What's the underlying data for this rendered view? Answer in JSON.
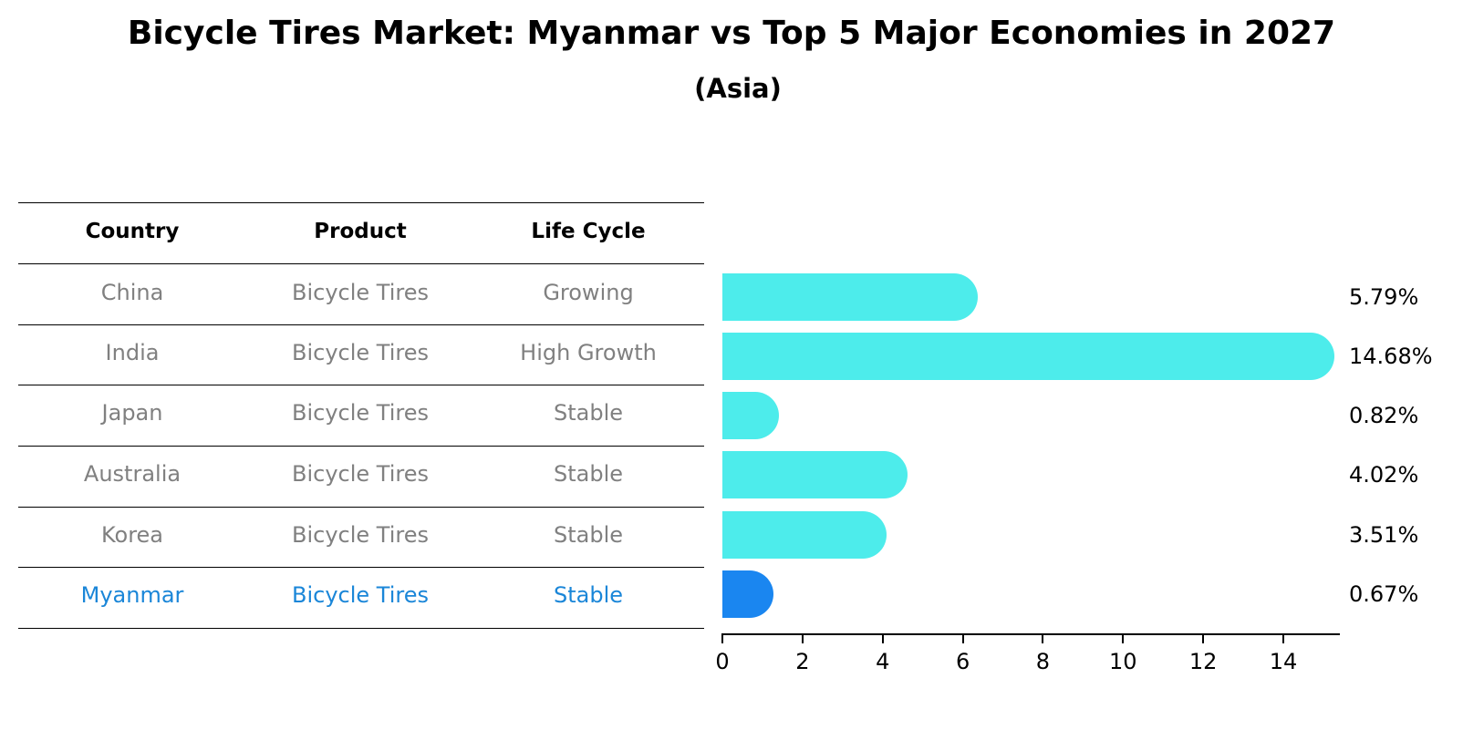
{
  "title": "Bicycle Tires Market: Myanmar vs Top 5 Major Economies in 2027",
  "subtitle": "(Asia)",
  "table": {
    "headers": [
      "Country",
      "Product",
      "Life Cycle"
    ],
    "rows": [
      {
        "country": "China",
        "product": "Bicycle Tires",
        "life_cycle": "Growing"
      },
      {
        "country": "India",
        "product": "Bicycle Tires",
        "life_cycle": "High Growth"
      },
      {
        "country": "Japan",
        "product": "Bicycle Tires",
        "life_cycle": "Stable"
      },
      {
        "country": "Australia",
        "product": "Bicycle Tires",
        "life_cycle": "Stable"
      },
      {
        "country": "Korea",
        "product": "Bicycle Tires",
        "life_cycle": "Stable"
      },
      {
        "country": "Myanmar",
        "product": "Bicycle Tires",
        "life_cycle": "Stable"
      }
    ]
  },
  "colors": {
    "bar": "#4deceb",
    "highlight_bar": "#1a86f0",
    "highlight_text": "#1a86d8",
    "row_text": "#808080"
  },
  "chart_data": {
    "type": "bar",
    "orientation": "horizontal",
    "title": "Bicycle Tires Market: Myanmar vs Top 5 Major Economies in 2027",
    "subtitle": "(Asia)",
    "categories": [
      "China",
      "India",
      "Japan",
      "Australia",
      "Korea",
      "Myanmar"
    ],
    "values": [
      5.79,
      14.68,
      0.82,
      4.02,
      3.51,
      0.67
    ],
    "value_labels": [
      "5.79%",
      "14.68%",
      "0.82%",
      "4.02%",
      "3.51%",
      "0.67%"
    ],
    "highlight": "Myanmar",
    "xlabel": "",
    "ylabel": "",
    "xlim": [
      0,
      15.4
    ],
    "xticks": [
      0,
      2,
      4,
      6,
      8,
      10,
      12,
      14
    ],
    "grid": false,
    "legend": null
  }
}
